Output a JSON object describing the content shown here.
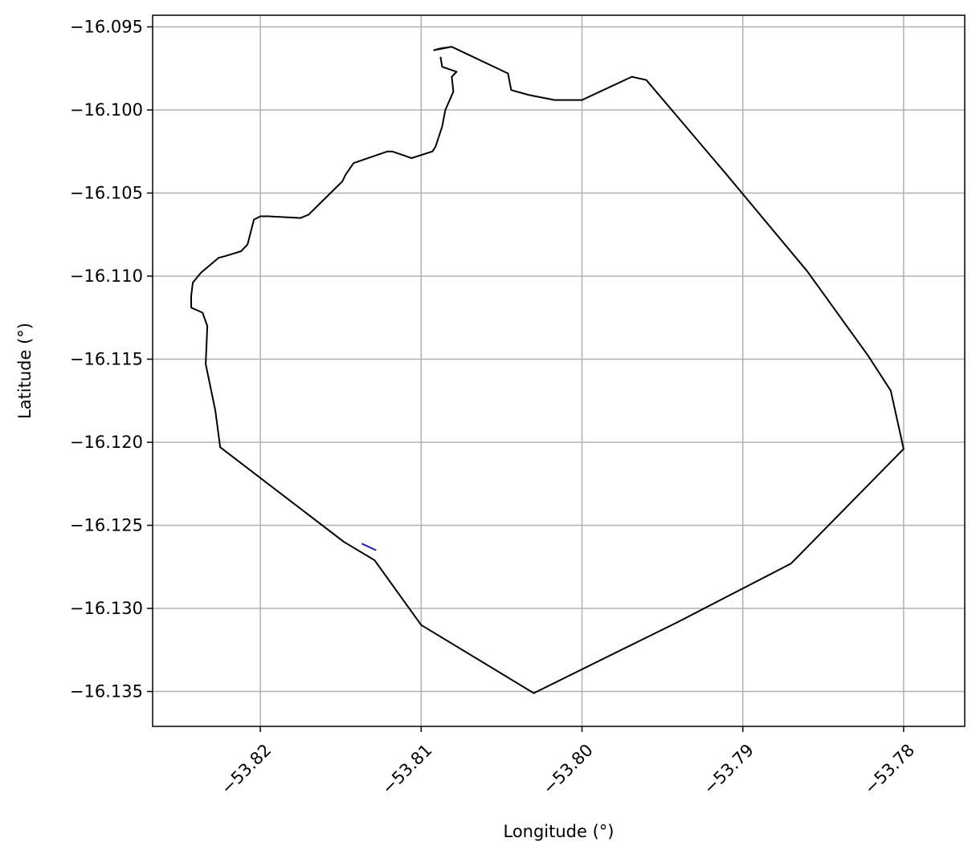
{
  "chart_data": {
    "type": "line",
    "title": "",
    "xlabel": "Longitude (°)",
    "ylabel": "Latitude (°)",
    "xlim": [
      -53.8267,
      -53.7762
    ],
    "ylim": [
      -16.1371,
      -16.0943
    ],
    "grid": true,
    "legend": "none",
    "x_ticks": [
      -53.82,
      -53.81,
      -53.8,
      -53.79,
      -53.78
    ],
    "x_tick_labels": [
      "−53.82",
      "−53.81",
      "−53.80",
      "−53.79",
      "−53.78"
    ],
    "y_ticks": [
      -16.095,
      -16.1,
      -16.105,
      -16.11,
      -16.115,
      -16.12,
      -16.125,
      -16.13,
      -16.135
    ],
    "y_tick_labels": [
      "−16.095",
      "−16.100",
      "−16.105",
      "−16.110",
      "−16.115",
      "−16.120",
      "−16.125",
      "−16.130",
      "−16.135"
    ],
    "colors": {
      "boundary": "#000000",
      "detail": "#1f1fbf",
      "grid": "#b0b0b0"
    },
    "series": [
      {
        "color": "#000000",
        "points": [
          [
            -53.8081,
            -16.0962
          ],
          [
            -53.8092,
            -16.0964
          ],
          [
            -53.8088,
            -16.0963
          ],
          [
            -53.8081,
            -16.0962
          ],
          [
            -53.8046,
            -16.0978
          ],
          [
            -53.8044,
            -16.0988
          ],
          [
            -53.8033,
            -16.0991
          ],
          [
            -53.8017,
            -16.0994
          ],
          [
            -53.8,
            -16.0994
          ],
          [
            -53.7969,
            -16.098
          ],
          [
            -53.796,
            -16.0982
          ],
          [
            -53.791,
            -16.1039
          ],
          [
            -53.786,
            -16.1097
          ],
          [
            -53.7822,
            -16.1148
          ],
          [
            -53.7808,
            -16.1169
          ],
          [
            -53.78,
            -16.1204
          ],
          [
            -53.787,
            -16.1273
          ],
          [
            -53.794,
            -16.1308
          ],
          [
            -53.803,
            -16.1351
          ],
          [
            -53.81,
            -16.131
          ],
          [
            -53.8129,
            -16.1271
          ],
          [
            -53.8148,
            -16.126
          ],
          [
            -53.8225,
            -16.1203
          ],
          [
            -53.8228,
            -16.1181
          ],
          [
            -53.8234,
            -16.1153
          ],
          [
            -53.8233,
            -16.113
          ],
          [
            -53.8236,
            -16.1122
          ],
          [
            -53.8243,
            -16.1119
          ],
          [
            -53.8243,
            -16.1112
          ],
          [
            -53.8242,
            -16.1104
          ],
          [
            -53.8237,
            -16.1098
          ],
          [
            -53.8226,
            -16.1089
          ],
          [
            -53.8222,
            -16.1088
          ],
          [
            -53.8212,
            -16.1085
          ],
          [
            -53.8208,
            -16.1081
          ],
          [
            -53.8204,
            -16.1066
          ],
          [
            -53.82,
            -16.1064
          ],
          [
            -53.8195,
            -16.1064
          ],
          [
            -53.8175,
            -16.1065
          ],
          [
            -53.817,
            -16.1063
          ],
          [
            -53.8149,
            -16.1043
          ],
          [
            -53.8147,
            -16.1039
          ],
          [
            -53.8142,
            -16.1032
          ],
          [
            -53.8121,
            -16.1025
          ],
          [
            -53.8118,
            -16.1025
          ],
          [
            -53.8106,
            -16.1029
          ],
          [
            -53.8093,
            -16.1025
          ],
          [
            -53.8091,
            -16.1022
          ],
          [
            -53.8087,
            -16.101
          ],
          [
            -53.8085,
            -16.1
          ],
          [
            -53.808,
            -16.0989
          ],
          [
            -53.8081,
            -16.098
          ],
          [
            -53.8078,
            -16.0977
          ],
          [
            -53.8087,
            -16.0974
          ],
          [
            -53.8088,
            -16.0968
          ]
        ]
      },
      {
        "color": "#1f1fbf",
        "points": [
          [
            -53.8137,
            -16.1261
          ],
          [
            -53.8128,
            -16.1265
          ]
        ]
      }
    ]
  }
}
